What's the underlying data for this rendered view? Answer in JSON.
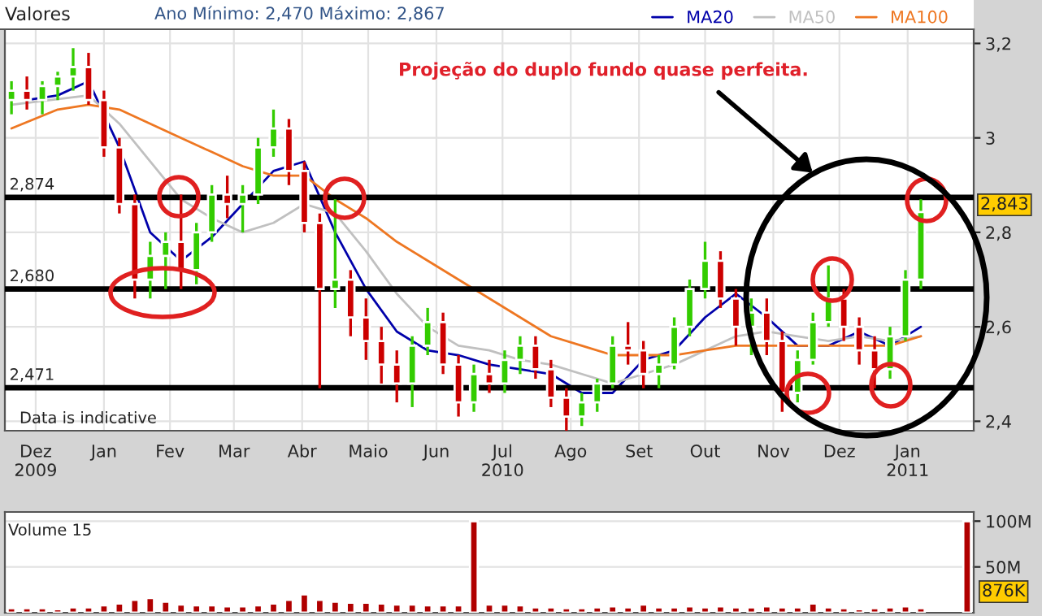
{
  "chart_data": [
    {
      "type": "candlestick",
      "x": [
        "2009-12-04",
        "2009-12-11",
        "2009-12-18",
        "2009-12-25",
        "2010-01-01",
        "2010-01-08",
        "2010-01-15",
        "2010-01-22",
        "2010-01-29",
        "2010-02-05",
        "2010-02-12",
        "2010-02-19",
        "2010-02-26",
        "2010-03-05",
        "2010-03-12",
        "2010-03-19",
        "2010-03-26",
        "2010-04-02",
        "2010-04-09",
        "2010-04-16",
        "2010-04-23",
        "2010-04-30",
        "2010-05-07",
        "2010-05-14",
        "2010-05-21",
        "2010-05-28",
        "2010-06-04",
        "2010-06-11",
        "2010-06-18",
        "2010-06-25",
        "2010-07-02",
        "2010-07-09",
        "2010-07-16",
        "2010-07-23",
        "2010-07-30",
        "2010-08-06",
        "2010-08-13",
        "2010-08-20",
        "2010-08-27",
        "2010-09-03",
        "2010-09-10",
        "2010-09-17",
        "2010-09-24",
        "2010-10-01",
        "2010-10-08",
        "2010-10-15",
        "2010-10-22",
        "2010-10-29",
        "2010-11-05",
        "2010-11-12",
        "2010-11-19",
        "2010-11-26",
        "2010-12-03",
        "2010-12-10",
        "2010-12-17",
        "2010-12-24",
        "2010-12-31",
        "2011-01-07",
        "2011-01-14",
        "2011-01-21"
      ],
      "ohlc": [
        [
          3.08,
          3.12,
          3.05,
          3.1
        ],
        [
          3.1,
          3.13,
          3.06,
          3.08
        ],
        [
          3.08,
          3.12,
          3.05,
          3.11
        ],
        [
          3.11,
          3.14,
          3.08,
          3.13
        ],
        [
          3.13,
          3.19,
          3.1,
          3.15
        ],
        [
          3.15,
          3.18,
          3.07,
          3.08
        ],
        [
          3.08,
          3.1,
          2.96,
          2.98
        ],
        [
          2.98,
          3.0,
          2.84,
          2.86
        ],
        [
          2.86,
          2.88,
          2.66,
          2.7
        ],
        [
          2.7,
          2.78,
          2.66,
          2.75
        ],
        [
          2.75,
          2.8,
          2.68,
          2.78
        ],
        [
          2.78,
          2.88,
          2.68,
          2.72
        ],
        [
          2.72,
          2.82,
          2.69,
          2.8
        ],
        [
          2.8,
          2.9,
          2.78,
          2.88
        ],
        [
          2.88,
          2.92,
          2.83,
          2.86
        ],
        [
          2.86,
          2.9,
          2.8,
          2.88
        ],
        [
          2.88,
          3.0,
          2.86,
          2.98
        ],
        [
          2.98,
          3.06,
          2.96,
          3.02
        ],
        [
          3.02,
          3.04,
          2.9,
          2.93
        ],
        [
          2.93,
          2.95,
          2.8,
          2.82
        ],
        [
          2.82,
          2.84,
          2.47,
          2.68
        ],
        [
          2.68,
          2.87,
          2.64,
          2.7
        ],
        [
          2.7,
          2.72,
          2.58,
          2.62
        ],
        [
          2.62,
          2.66,
          2.53,
          2.57
        ],
        [
          2.57,
          2.6,
          2.48,
          2.52
        ],
        [
          2.52,
          2.55,
          2.44,
          2.48
        ],
        [
          2.48,
          2.58,
          2.43,
          2.56
        ],
        [
          2.56,
          2.64,
          2.54,
          2.61
        ],
        [
          2.61,
          2.63,
          2.5,
          2.52
        ],
        [
          2.52,
          2.54,
          2.41,
          2.44
        ],
        [
          2.44,
          2.52,
          2.42,
          2.5
        ],
        [
          2.5,
          2.53,
          2.46,
          2.48
        ],
        [
          2.48,
          2.55,
          2.46,
          2.53
        ],
        [
          2.53,
          2.58,
          2.5,
          2.56
        ],
        [
          2.56,
          2.58,
          2.49,
          2.51
        ],
        [
          2.51,
          2.53,
          2.43,
          2.45
        ],
        [
          2.45,
          2.47,
          2.38,
          2.41
        ],
        [
          2.41,
          2.46,
          2.39,
          2.44
        ],
        [
          2.44,
          2.49,
          2.42,
          2.48
        ],
        [
          2.48,
          2.58,
          2.47,
          2.56
        ],
        [
          2.56,
          2.61,
          2.52,
          2.55
        ],
        [
          2.55,
          2.57,
          2.47,
          2.5
        ],
        [
          2.5,
          2.54,
          2.47,
          2.52
        ],
        [
          2.52,
          2.62,
          2.51,
          2.6
        ],
        [
          2.6,
          2.7,
          2.58,
          2.68
        ],
        [
          2.68,
          2.78,
          2.66,
          2.74
        ],
        [
          2.74,
          2.76,
          2.64,
          2.66
        ],
        [
          2.66,
          2.68,
          2.56,
          2.6
        ],
        [
          2.6,
          2.66,
          2.54,
          2.63
        ],
        [
          2.63,
          2.66,
          2.54,
          2.57
        ],
        [
          2.57,
          2.59,
          2.42,
          2.46
        ],
        [
          2.46,
          2.55,
          2.44,
          2.53
        ],
        [
          2.53,
          2.63,
          2.52,
          2.61
        ],
        [
          2.61,
          2.73,
          2.6,
          2.66
        ],
        [
          2.66,
          2.68,
          2.57,
          2.6
        ],
        [
          2.6,
          2.62,
          2.52,
          2.55
        ],
        [
          2.55,
          2.58,
          2.47,
          2.51
        ],
        [
          2.51,
          2.6,
          2.49,
          2.58
        ],
        [
          2.58,
          2.72,
          2.57,
          2.7
        ],
        [
          2.7,
          2.87,
          2.68,
          2.843
        ]
      ],
      "colors": [
        "#33cc00",
        "#cc0000",
        "#33cc00",
        "#33cc00",
        "#33cc00",
        "#cc0000",
        "#cc0000",
        "#cc0000",
        "#cc0000",
        "#33cc00",
        "#33cc00",
        "#cc0000",
        "#33cc00",
        "#33cc00",
        "#cc0000",
        "#33cc00",
        "#33cc00",
        "#33cc00",
        "#cc0000",
        "#cc0000",
        "#cc0000",
        "#33cc00",
        "#cc0000",
        "#cc0000",
        "#cc0000",
        "#cc0000",
        "#33cc00",
        "#33cc00",
        "#cc0000",
        "#cc0000",
        "#33cc00",
        "#cc0000",
        "#33cc00",
        "#33cc00",
        "#cc0000",
        "#cc0000",
        "#cc0000",
        "#33cc00",
        "#33cc00",
        "#33cc00",
        "#cc0000",
        "#cc0000",
        "#33cc00",
        "#33cc00",
        "#33cc00",
        "#33cc00",
        "#cc0000",
        "#cc0000",
        "#33cc00",
        "#cc0000",
        "#cc0000",
        "#33cc00",
        "#33cc00",
        "#33cc00",
        "#cc0000",
        "#cc0000",
        "#cc0000",
        "#33cc00",
        "#33cc00",
        "#33cc00"
      ],
      "series": [
        {
          "name": "MA20",
          "type": "line",
          "color": "#0000aa",
          "x": [
            "2009-12-11",
            "2009-12-25",
            "2010-01-08",
            "2010-01-22",
            "2010-02-05",
            "2010-02-19",
            "2010-03-05",
            "2010-03-19",
            "2010-04-02",
            "2010-04-16",
            "2010-04-30",
            "2010-05-14",
            "2010-05-28",
            "2010-06-11",
            "2010-06-25",
            "2010-07-09",
            "2010-07-23",
            "2010-08-06",
            "2010-08-20",
            "2010-09-03",
            "2010-09-17",
            "2010-10-01",
            "2010-10-15",
            "2010-10-29",
            "2010-11-12",
            "2010-11-26",
            "2010-12-10",
            "2010-12-24",
            "2011-01-07",
            "2011-01-21"
          ],
          "values": [
            3.08,
            3.09,
            3.12,
            2.98,
            2.8,
            2.74,
            2.79,
            2.86,
            2.93,
            2.95,
            2.8,
            2.68,
            2.59,
            2.55,
            2.54,
            2.52,
            2.51,
            2.5,
            2.46,
            2.46,
            2.53,
            2.55,
            2.62,
            2.67,
            2.62,
            2.56,
            2.56,
            2.59,
            2.56,
            2.6
          ]
        },
        {
          "name": "MA50",
          "type": "line",
          "color": "#c0c0c0",
          "x": [
            "2009-12-04",
            "2010-01-08",
            "2010-01-22",
            "2010-02-05",
            "2010-02-19",
            "2010-03-05",
            "2010-03-19",
            "2010-04-02",
            "2010-04-16",
            "2010-04-30",
            "2010-05-14",
            "2010-05-28",
            "2010-06-11",
            "2010-06-25",
            "2010-07-09",
            "2010-07-23",
            "2010-08-06",
            "2010-08-20",
            "2010-09-03",
            "2010-09-17",
            "2010-10-01",
            "2010-10-15",
            "2010-10-29",
            "2010-11-12",
            "2010-11-26",
            "2010-12-10",
            "2010-12-24",
            "2011-01-07",
            "2011-01-21"
          ],
          "values": [
            3.07,
            3.09,
            3.03,
            2.95,
            2.87,
            2.83,
            2.8,
            2.82,
            2.86,
            2.84,
            2.76,
            2.67,
            2.6,
            2.56,
            2.55,
            2.53,
            2.52,
            2.5,
            2.48,
            2.5,
            2.52,
            2.55,
            2.58,
            2.59,
            2.58,
            2.57,
            2.58,
            2.57,
            2.58
          ]
        },
        {
          "name": "MA100",
          "type": "line",
          "color": "#ee7722",
          "x": [
            "2009-12-04",
            "2009-12-25",
            "2010-01-08",
            "2010-01-22",
            "2010-02-05",
            "2010-02-19",
            "2010-03-05",
            "2010-03-19",
            "2010-04-02",
            "2010-04-16",
            "2010-04-30",
            "2010-05-14",
            "2010-05-28",
            "2010-06-11",
            "2010-06-25",
            "2010-07-09",
            "2010-07-23",
            "2010-08-06",
            "2010-08-20",
            "2010-09-03",
            "2010-09-17",
            "2010-10-01",
            "2010-10-15",
            "2010-10-29",
            "2010-11-12",
            "2010-11-26",
            "2010-12-10",
            "2010-12-24",
            "2011-01-07",
            "2011-01-21"
          ],
          "values": [
            3.02,
            3.06,
            3.07,
            3.06,
            3.03,
            3.0,
            2.97,
            2.94,
            2.92,
            2.92,
            2.87,
            2.83,
            2.78,
            2.74,
            2.7,
            2.66,
            2.62,
            2.58,
            2.56,
            2.54,
            2.54,
            2.54,
            2.55,
            2.56,
            2.56,
            2.56,
            2.56,
            2.56,
            2.56,
            2.58
          ]
        }
      ],
      "xlim": [
        "2009-12-01",
        "2011-02-14"
      ],
      "xticks": [
        {
          "value": "2009-12-15",
          "label": "Dez\n2009"
        },
        {
          "value": "2010-01-15",
          "label": "Jan"
        },
        {
          "value": "2010-02-14",
          "label": "Fev"
        },
        {
          "value": "2010-03-15",
          "label": "Mar"
        },
        {
          "value": "2010-04-15",
          "label": "Abr"
        },
        {
          "value": "2010-05-15",
          "label": "Maio"
        },
        {
          "value": "2010-06-15",
          "label": "Jun"
        },
        {
          "value": "2010-07-15",
          "label": "Jul\n2010"
        },
        {
          "value": "2010-08-15",
          "label": "Ago"
        },
        {
          "value": "2010-09-15",
          "label": "Set"
        },
        {
          "value": "2010-10-15",
          "label": "Out"
        },
        {
          "value": "2010-11-15",
          "label": "Nov"
        },
        {
          "value": "2010-12-15",
          "label": "Dez"
        },
        {
          "value": "2011-01-15",
          "label": "Jan\n2011"
        }
      ],
      "ylim": [
        2.38,
        3.23
      ],
      "yticks": [
        {
          "value": 2.4,
          "label": "2,4"
        },
        {
          "value": 2.6,
          "label": "2,6"
        },
        {
          "value": 2.8,
          "label": "2,8"
        },
        {
          "value": 3,
          "label": "3"
        },
        {
          "value": 3.2,
          "label": "3,2"
        }
      ],
      "ref_lines": [
        {
          "axis": "y",
          "value": 2.874,
          "label": "2,874",
          "color": "#000000"
        },
        {
          "axis": "y",
          "value": 2.68,
          "label": "2,680",
          "color": "#000000"
        },
        {
          "axis": "y",
          "value": 2.471,
          "label": "2,471",
          "color": "#000000"
        }
      ],
      "annotations": [
        "Valores",
        "Ano Mínimo: 2,470 Máximo: 2,867",
        "Projeção do duplo fundo quase perfeita.",
        "Data is indicative",
        "2,843"
      ],
      "legend": "top",
      "grid": true
    },
    {
      "type": "bar",
      "x": [
        "2009-12-04",
        "2009-12-11",
        "2009-12-18",
        "2009-12-25",
        "2010-01-01",
        "2010-01-08",
        "2010-01-15",
        "2010-01-22",
        "2010-01-29",
        "2010-02-05",
        "2010-02-12",
        "2010-02-19",
        "2010-02-26",
        "2010-03-05",
        "2010-03-12",
        "2010-03-19",
        "2010-03-26",
        "2010-04-02",
        "2010-04-09",
        "2010-04-16",
        "2010-04-23",
        "2010-04-30",
        "2010-05-07",
        "2010-05-14",
        "2010-05-21",
        "2010-05-28",
        "2010-06-04",
        "2010-06-11",
        "2010-06-18",
        "2010-06-25",
        "2010-07-02",
        "2010-07-09",
        "2010-07-16",
        "2010-07-23",
        "2010-07-30",
        "2010-08-06",
        "2010-08-13",
        "2010-08-20",
        "2010-08-27",
        "2010-09-03",
        "2010-09-10",
        "2010-09-17",
        "2010-09-24",
        "2010-10-01",
        "2010-10-08",
        "2010-10-15",
        "2010-10-22",
        "2010-10-29",
        "2010-11-05",
        "2010-11-12",
        "2010-11-19",
        "2010-11-26",
        "2010-12-03",
        "2010-12-10",
        "2010-12-17",
        "2010-12-24",
        "2010-12-31",
        "2011-01-07",
        "2011-01-14",
        "2011-01-21",
        "2011-02-11"
      ],
      "series": [
        {
          "color": "#b00000",
          "values": [
            5,
            5,
            5,
            4,
            6,
            6,
            8,
            10,
            14,
            16,
            12,
            9,
            8,
            8,
            7,
            7,
            8,
            10,
            14,
            20,
            14,
            12,
            11,
            11,
            10,
            9,
            9,
            8,
            8,
            8,
            100,
            9,
            9,
            8,
            6,
            6,
            5,
            5,
            6,
            7,
            6,
            9,
            6,
            6,
            7,
            6,
            7,
            6,
            6,
            7,
            6,
            6,
            10,
            6,
            5,
            4,
            5,
            6,
            7,
            5,
            100
          ]
        }
      ],
      "xlim": [
        "2009-12-01",
        "2011-02-14"
      ],
      "ylim": [
        0,
        110
      ],
      "yticks": [
        {
          "value": 50,
          "label": "50M"
        },
        {
          "value": 100,
          "label": "100M"
        }
      ],
      "tick_labels": "y",
      "annotations": [
        "Volume 15",
        "876K"
      ],
      "grid": true
    }
  ]
}
